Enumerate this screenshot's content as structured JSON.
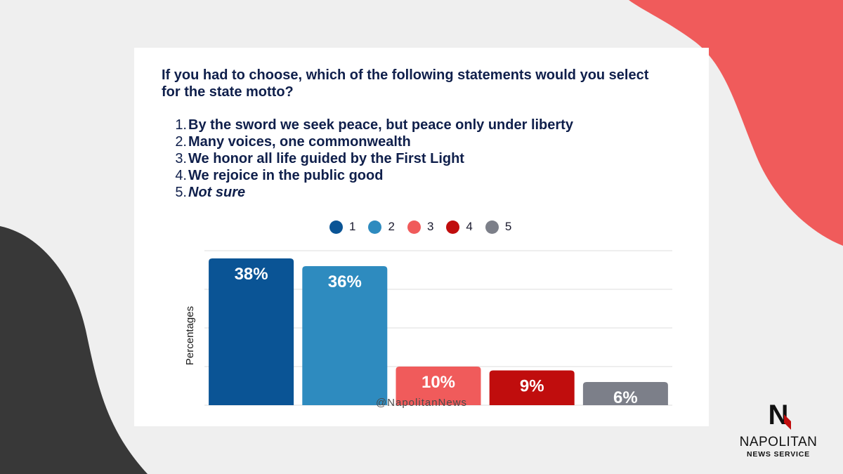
{
  "colors": {
    "background": "#efefef",
    "coral_shape": "#f05b5b",
    "dark_shape": "#383838",
    "heading": "#0f1f4b"
  },
  "question": "If you had to choose, which of the following statements would you select for the state motto?",
  "options": [
    {
      "number": "1.",
      "text": "By the sword we seek peace, but peace only under liberty"
    },
    {
      "number": "2.",
      "text": "Many voices, one commonwealth"
    },
    {
      "number": "3.",
      "text": "We honor all life guided by the First Light"
    },
    {
      "number": "4.",
      "text": "We rejoice in the public good"
    },
    {
      "number": "5.",
      "text": "Not sure"
    }
  ],
  "chart_data": {
    "type": "bar",
    "categories": [
      "1",
      "2",
      "3",
      "4",
      "5"
    ],
    "values": [
      38,
      36,
      10,
      9,
      6
    ],
    "value_labels": [
      "38%",
      "36%",
      "10%",
      "9%",
      "6%"
    ],
    "colors": [
      "#0a5495",
      "#2e8bbf",
      "#f05b5b",
      "#c00d0d",
      "#7c7f89"
    ],
    "ylabel": "Percentages",
    "ylim": [
      0,
      40
    ],
    "grid": true,
    "legend": "top-center"
  },
  "footer": {
    "handle": "@NapolitanNews"
  },
  "logo": {
    "letter": "N",
    "name": "NAPOLITAN",
    "subtitle": "NEWS SERVICE"
  }
}
